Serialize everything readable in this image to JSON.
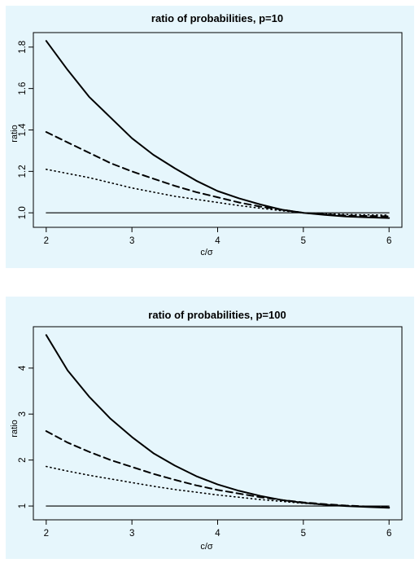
{
  "chart_data": [
    {
      "type": "line",
      "title": "ratio of probabilities, p=10",
      "xlabel": "c/σ",
      "ylabel": "ratio",
      "xlim": [
        1.85,
        6.15
      ],
      "ylim": [
        0.93,
        1.87
      ],
      "xticks": [
        2,
        3,
        4,
        5,
        6
      ],
      "yticks": [
        1.0,
        1.2,
        1.4,
        1.6,
        1.8
      ],
      "ytick_labels": [
        "1.0",
        "1.2",
        "1.4",
        "1.6",
        "1.8"
      ],
      "grid": false,
      "x": [
        2,
        2.25,
        2.5,
        2.75,
        3,
        3.25,
        3.5,
        3.75,
        4,
        4.25,
        4.5,
        4.75,
        5,
        5.25,
        5.5,
        5.75,
        6
      ],
      "series": [
        {
          "style": "solid",
          "values": [
            1.83,
            1.69,
            1.56,
            1.46,
            1.36,
            1.28,
            1.215,
            1.155,
            1.105,
            1.07,
            1.04,
            1.015,
            1.0,
            0.99,
            0.982,
            0.978,
            0.975
          ]
        },
        {
          "style": "dashed",
          "values": [
            1.39,
            1.34,
            1.29,
            1.24,
            1.2,
            1.165,
            1.13,
            1.1,
            1.075,
            1.05,
            1.03,
            1.015,
            1.0,
            0.993,
            0.987,
            0.985,
            0.983
          ]
        },
        {
          "style": "dotted",
          "values": [
            1.21,
            1.19,
            1.17,
            1.145,
            1.12,
            1.1,
            1.08,
            1.065,
            1.05,
            1.035,
            1.022,
            1.01,
            1.0,
            0.995,
            0.992,
            0.99,
            0.989
          ]
        },
        {
          "style": "thin",
          "values": [
            1,
            1,
            1,
            1,
            1,
            1,
            1,
            1,
            1,
            1,
            1,
            1,
            1,
            1,
            1,
            1,
            1
          ]
        }
      ]
    },
    {
      "type": "line",
      "title": "ratio of probabilities, p=100",
      "xlabel": "c/σ",
      "ylabel": "ratio",
      "xlim": [
        1.85,
        6.15
      ],
      "ylim": [
        0.7,
        4.9
      ],
      "xticks": [
        2,
        3,
        4,
        5,
        6
      ],
      "yticks": [
        1,
        2,
        3,
        4
      ],
      "ytick_labels": [
        "1",
        "2",
        "3",
        "4"
      ],
      "grid": false,
      "x": [
        2,
        2.25,
        2.5,
        2.75,
        3,
        3.25,
        3.5,
        3.75,
        4,
        4.25,
        4.5,
        4.75,
        5,
        5.25,
        5.5,
        5.75,
        6
      ],
      "series": [
        {
          "style": "solid",
          "values": [
            4.72,
            3.95,
            3.38,
            2.9,
            2.5,
            2.15,
            1.88,
            1.65,
            1.47,
            1.33,
            1.22,
            1.13,
            1.07,
            1.03,
            1.0,
            0.98,
            0.96
          ]
        },
        {
          "style": "dashed",
          "values": [
            2.63,
            2.38,
            2.18,
            2.0,
            1.85,
            1.7,
            1.57,
            1.45,
            1.35,
            1.27,
            1.19,
            1.13,
            1.08,
            1.04,
            1.01,
            0.99,
            0.97
          ]
        },
        {
          "style": "dotted",
          "values": [
            1.86,
            1.76,
            1.67,
            1.59,
            1.51,
            1.43,
            1.36,
            1.3,
            1.24,
            1.19,
            1.14,
            1.1,
            1.06,
            1.03,
            1.01,
            0.99,
            0.98
          ]
        },
        {
          "style": "thin",
          "values": [
            1,
            1,
            1,
            1,
            1,
            1,
            1,
            1,
            1,
            1,
            1,
            1,
            1,
            1,
            1,
            1,
            1
          ]
        }
      ]
    }
  ]
}
